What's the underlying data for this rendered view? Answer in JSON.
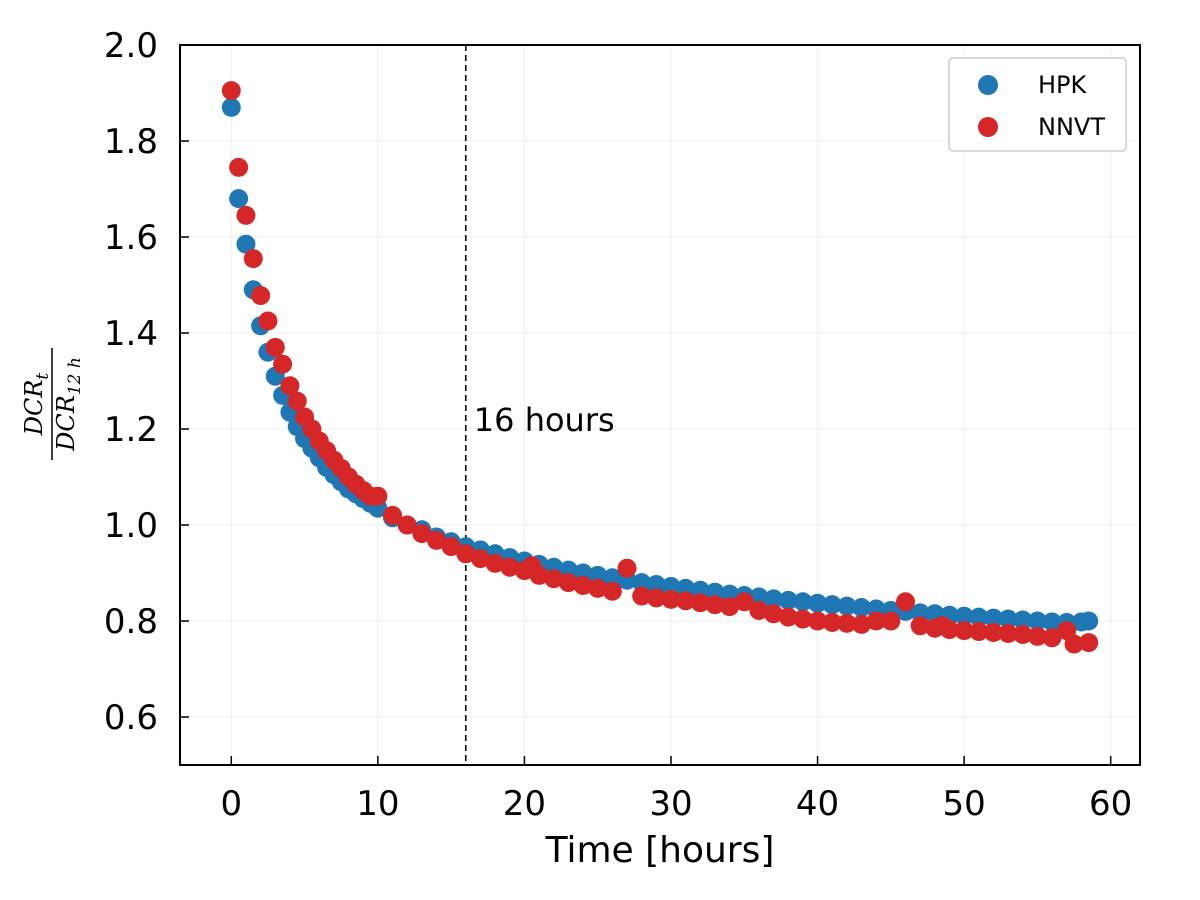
{
  "chart_data": {
    "type": "scatter",
    "xlabel": "Time [hours]",
    "ylabel": "DCR_t / DCR_12h",
    "ylabel_parts": {
      "num_main": "DCR",
      "num_sub": "t",
      "den_main": "DCR",
      "den_sub": "12 h"
    },
    "xlim": [
      -3.5,
      62
    ],
    "ylim": [
      0.5,
      2.0
    ],
    "xticks": [
      "0",
      "10",
      "20",
      "30",
      "40",
      "50",
      "60"
    ],
    "yticks": [
      "0.6",
      "0.8",
      "1.0",
      "1.2",
      "1.4",
      "1.6",
      "1.8",
      "2.0"
    ],
    "grid": true,
    "legend_position": "top-right",
    "annotation": {
      "text": "16 hours",
      "x_line": 16
    },
    "colors": {
      "HPK": "#1f77b4",
      "NNVT": "#d62728"
    },
    "series": [
      {
        "name": "HPK",
        "points": [
          [
            0.0,
            1.87
          ],
          [
            0.5,
            1.68
          ],
          [
            1.0,
            1.585
          ],
          [
            1.5,
            1.49
          ],
          [
            2.0,
            1.415
          ],
          [
            2.5,
            1.36
          ],
          [
            3.0,
            1.31
          ],
          [
            3.5,
            1.27
          ],
          [
            4.0,
            1.235
          ],
          [
            4.5,
            1.205
          ],
          [
            5.0,
            1.18
          ],
          [
            5.5,
            1.16
          ],
          [
            6.0,
            1.14
          ],
          [
            6.5,
            1.12
          ],
          [
            7.0,
            1.105
          ],
          [
            7.5,
            1.09
          ],
          [
            8.0,
            1.075
          ],
          [
            8.5,
            1.065
          ],
          [
            9.0,
            1.055
          ],
          [
            9.5,
            1.045
          ],
          [
            10.0,
            1.035
          ],
          [
            11.0,
            1.015
          ],
          [
            12.0,
            1.0
          ],
          [
            13.0,
            0.99
          ],
          [
            14.0,
            0.975
          ],
          [
            15.0,
            0.965
          ],
          [
            16.0,
            0.955
          ],
          [
            17.0,
            0.948
          ],
          [
            18.0,
            0.94
          ],
          [
            19.0,
            0.932
          ],
          [
            20.0,
            0.925
          ],
          [
            21.0,
            0.918
          ],
          [
            22.0,
            0.912
          ],
          [
            23.0,
            0.906
          ],
          [
            24.0,
            0.9
          ],
          [
            25.0,
            0.895
          ],
          [
            26.0,
            0.89
          ],
          [
            27.0,
            0.885
          ],
          [
            28.0,
            0.88
          ],
          [
            29.0,
            0.876
          ],
          [
            30.0,
            0.872
          ],
          [
            31.0,
            0.868
          ],
          [
            32.0,
            0.864
          ],
          [
            33.0,
            0.86
          ],
          [
            34.0,
            0.856
          ],
          [
            35.0,
            0.853
          ],
          [
            36.0,
            0.85
          ],
          [
            37.0,
            0.846
          ],
          [
            38.0,
            0.843
          ],
          [
            39.0,
            0.84
          ],
          [
            40.0,
            0.837
          ],
          [
            41.0,
            0.834
          ],
          [
            42.0,
            0.831
          ],
          [
            43.0,
            0.828
          ],
          [
            44.0,
            0.825
          ],
          [
            45.0,
            0.822
          ],
          [
            46.0,
            0.82
          ],
          [
            47.0,
            0.817
          ],
          [
            48.0,
            0.815
          ],
          [
            49.0,
            0.812
          ],
          [
            50.0,
            0.81
          ],
          [
            51.0,
            0.808
          ],
          [
            52.0,
            0.806
          ],
          [
            53.0,
            0.804
          ],
          [
            54.0,
            0.802
          ],
          [
            55.0,
            0.8
          ],
          [
            56.0,
            0.798
          ],
          [
            57.0,
            0.797
          ],
          [
            58.0,
            0.798
          ],
          [
            58.5,
            0.8
          ]
        ]
      },
      {
        "name": "NNVT",
        "points": [
          [
            0.0,
            1.905
          ],
          [
            0.5,
            1.745
          ],
          [
            1.0,
            1.645
          ],
          [
            1.5,
            1.555
          ],
          [
            2.0,
            1.478
          ],
          [
            2.5,
            1.425
          ],
          [
            3.0,
            1.37
          ],
          [
            3.5,
            1.335
          ],
          [
            4.0,
            1.29
          ],
          [
            4.5,
            1.258
          ],
          [
            5.0,
            1.225
          ],
          [
            5.5,
            1.2
          ],
          [
            6.0,
            1.175
          ],
          [
            6.5,
            1.155
          ],
          [
            7.0,
            1.135
          ],
          [
            7.5,
            1.118
          ],
          [
            8.0,
            1.1
          ],
          [
            8.5,
            1.085
          ],
          [
            9.0,
            1.072
          ],
          [
            9.5,
            1.06
          ],
          [
            10.0,
            1.06
          ],
          [
            11.0,
            1.02
          ],
          [
            12.0,
            1.0
          ],
          [
            13.0,
            0.982
          ],
          [
            14.0,
            0.968
          ],
          [
            15.0,
            0.955
          ],
          [
            16.0,
            0.94
          ],
          [
            17.0,
            0.93
          ],
          [
            18.0,
            0.92
          ],
          [
            19.0,
            0.912
          ],
          [
            20.0,
            0.905
          ],
          [
            20.5,
            0.915
          ],
          [
            21.0,
            0.895
          ],
          [
            22.0,
            0.888
          ],
          [
            23.0,
            0.88
          ],
          [
            24.0,
            0.874
          ],
          [
            25.0,
            0.868
          ],
          [
            26.0,
            0.862
          ],
          [
            27.0,
            0.91
          ],
          [
            28.0,
            0.852
          ],
          [
            29.0,
            0.848
          ],
          [
            30.0,
            0.845
          ],
          [
            31.0,
            0.842
          ],
          [
            32.0,
            0.838
          ],
          [
            33.0,
            0.834
          ],
          [
            34.0,
            0.83
          ],
          [
            35.0,
            0.84
          ],
          [
            36.0,
            0.822
          ],
          [
            37.0,
            0.815
          ],
          [
            38.0,
            0.808
          ],
          [
            39.0,
            0.804
          ],
          [
            40.0,
            0.8
          ],
          [
            41.0,
            0.797
          ],
          [
            42.0,
            0.795
          ],
          [
            43.0,
            0.793
          ],
          [
            44.0,
            0.8
          ],
          [
            45.0,
            0.8
          ],
          [
            46.0,
            0.84
          ],
          [
            47.0,
            0.79
          ],
          [
            48.0,
            0.785
          ],
          [
            48.5,
            0.79
          ],
          [
            49.0,
            0.782
          ],
          [
            50.0,
            0.78
          ],
          [
            51.0,
            0.778
          ],
          [
            52.0,
            0.776
          ],
          [
            53.0,
            0.774
          ],
          [
            54.0,
            0.772
          ],
          [
            55.0,
            0.768
          ],
          [
            56.0,
            0.765
          ],
          [
            57.0,
            0.78
          ],
          [
            57.5,
            0.752
          ],
          [
            58.5,
            0.755
          ]
        ]
      }
    ]
  }
}
